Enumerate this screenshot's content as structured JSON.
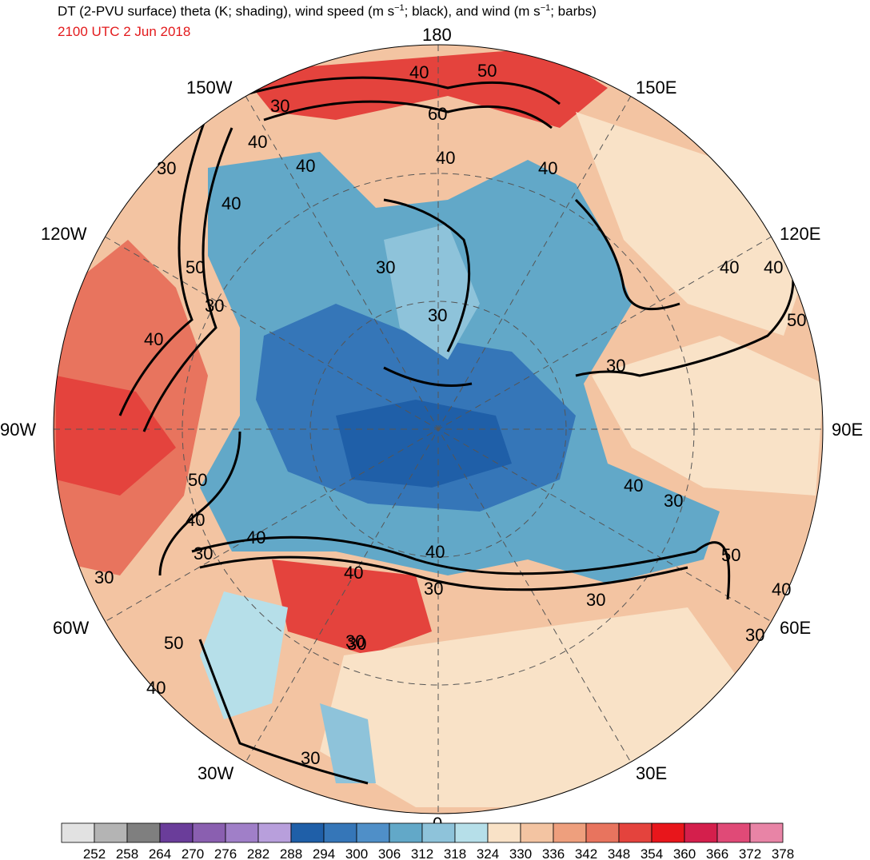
{
  "header": {
    "title_prefix": "DT (2-PVU surface) theta (K; shading), wind speed (m s",
    "title_sup1": "−1",
    "title_middle": "; black), and wind (m s",
    "title_sup2": "−1",
    "title_suffix": "; barbs)",
    "valid_time": "2100 UTC 2 Jun 2018"
  },
  "map": {
    "projection": "north polar stereographic",
    "longitude_labels": {
      "top": "180",
      "upper_left": "150W",
      "upper_right": "150E",
      "mid_upper_left": "120W",
      "mid_upper_right": "120E",
      "left": "90W",
      "right": "90E",
      "mid_lower_left": "60W",
      "mid_lower_right": "60E",
      "lower_left": "30W",
      "lower_right": "30E",
      "bottom": "0"
    },
    "wind_speed_contour_labels": [
      "50",
      "40",
      "60",
      "30",
      "40",
      "40",
      "30",
      "40",
      "30",
      "30",
      "50",
      "30",
      "40",
      "40",
      "50",
      "30",
      "40",
      "30",
      "40",
      "40",
      "30",
      "40",
      "30",
      "50",
      "30",
      "30",
      "40",
      "40",
      "30",
      "40",
      "30",
      "50",
      "40",
      "50",
      "40",
      "40",
      "30",
      "30"
    ]
  },
  "colorbar": {
    "labels": [
      "252",
      "258",
      "264",
      "270",
      "276",
      "282",
      "288",
      "294",
      "300",
      "306",
      "312",
      "318",
      "324",
      "330",
      "336",
      "342",
      "348",
      "354",
      "360",
      "366",
      "372",
      "378"
    ],
    "colors": [
      "#e2e2e2",
      "#b4b4b4",
      "#7f7f7f",
      "#6a3d9a",
      "#8a5fb0",
      "#a07fc8",
      "#b89fdc",
      "#1f5fa8",
      "#3576b8",
      "#4f8fc8",
      "#62a8c8",
      "#8ec3da",
      "#b6dfe9",
      "#f9e2c7",
      "#f3c4a2",
      "#ee9f7d",
      "#e8745e",
      "#e4433d",
      "#e8161b",
      "#d41f4c",
      "#e04a77",
      "#e884a6"
    ]
  }
}
